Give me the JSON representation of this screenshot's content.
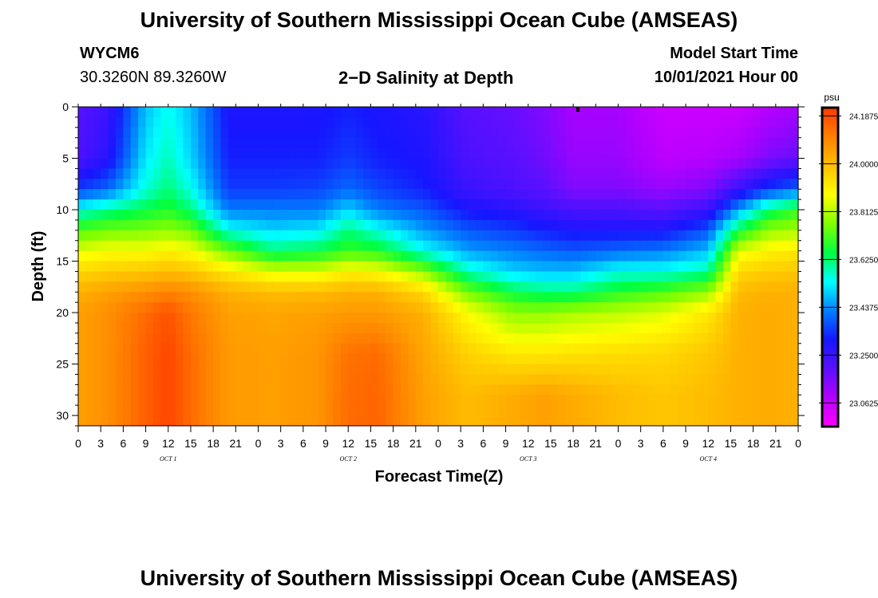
{
  "header": {
    "title_top": "University of Southern Mississippi Ocean Cube (AMSEAS)",
    "title_bottom": "University of Southern Mississippi Ocean Cube (AMSEAS)",
    "station": "WYCM6",
    "coords": "30.3260N  89.3260W",
    "subtitle": "2−D Salinity at Depth",
    "model_start_label": "Model Start Time",
    "model_start_value": "10/01/2021 Hour 00"
  },
  "chart_data": {
    "type": "heatmap",
    "title": "2−D Salinity at Depth",
    "xlabel": "Forecast Time(Z)",
    "ylabel": "Depth (ft)",
    "x_tick_labels": [
      "0",
      "3",
      "6",
      "9",
      "12",
      "15",
      "18",
      "21",
      "0",
      "3",
      "6",
      "9",
      "12",
      "15",
      "18",
      "21",
      "0",
      "3",
      "6",
      "9",
      "12",
      "15",
      "18",
      "21",
      "0",
      "3",
      "6",
      "9",
      "12",
      "15",
      "18",
      "21",
      "0"
    ],
    "day_labels": [
      {
        "label": "OCT 1",
        "hour": 12
      },
      {
        "label": "OCT 2",
        "hour": 36
      },
      {
        "label": "OCT 3",
        "hour": 60
      },
      {
        "label": "OCT 4",
        "hour": 84
      }
    ],
    "xlim": [
      0,
      96
    ],
    "ylim": [
      0,
      31
    ],
    "y_reversed": true,
    "y_ticks": [
      0,
      5,
      10,
      15,
      20,
      25,
      30
    ],
    "colorbar": {
      "unit": "psu",
      "min": 22.97,
      "max": 24.22,
      "tick_values": [
        24.1875,
        24.0,
        23.8125,
        23.625,
        23.4375,
        23.25,
        23.0625
      ],
      "tick_labels": [
        "24.1875",
        "24.0000",
        "23.8125",
        "23.6250",
        "23.4375",
        "23.2500",
        "23.0625"
      ],
      "colors": [
        "#ff00ff",
        "#b400ff",
        "#5a10ff",
        "#1616ff",
        "#0080ff",
        "#00ffff",
        "#00ff40",
        "#80ff00",
        "#ffff00",
        "#ffc000",
        "#ff8000",
        "#ff3a00"
      ]
    },
    "profiles": {
      "hours": [
        0,
        4,
        9,
        12,
        15,
        20,
        26,
        32,
        36,
        40,
        46,
        52,
        58,
        62,
        66,
        72,
        78,
        84,
        88,
        92,
        96
      ],
      "depths_ft": [
        0,
        5,
        8,
        10,
        12,
        14,
        16,
        18,
        20,
        24,
        28,
        31
      ],
      "values_psu": [
        [
          23.2,
          23.22,
          23.35,
          23.55,
          23.72,
          23.85,
          23.95,
          24.02,
          24.05,
          24.05,
          24.05,
          24.05
        ],
        [
          23.25,
          23.28,
          23.4,
          23.6,
          23.75,
          23.88,
          23.97,
          24.05,
          24.08,
          24.08,
          24.08,
          24.08
        ],
        [
          23.48,
          23.52,
          23.56,
          23.65,
          23.76,
          23.88,
          23.98,
          24.08,
          24.14,
          24.16,
          24.16,
          24.16
        ],
        [
          23.55,
          23.58,
          23.62,
          23.68,
          23.78,
          23.9,
          24.0,
          24.1,
          24.18,
          24.2,
          24.2,
          24.2
        ],
        [
          23.48,
          23.5,
          23.55,
          23.62,
          23.75,
          23.88,
          23.98,
          24.08,
          24.12,
          24.14,
          24.14,
          24.14
        ],
        [
          23.3,
          23.32,
          23.35,
          23.42,
          23.55,
          23.75,
          23.92,
          24.02,
          24.05,
          24.06,
          24.06,
          24.06
        ],
        [
          23.3,
          23.32,
          23.35,
          23.42,
          23.5,
          23.62,
          23.85,
          24.0,
          24.04,
          24.05,
          24.05,
          24.05
        ],
        [
          23.3,
          23.32,
          23.36,
          23.42,
          23.52,
          23.65,
          23.85,
          24.0,
          24.05,
          24.07,
          24.07,
          24.07
        ],
        [
          23.32,
          23.35,
          23.4,
          23.5,
          23.62,
          23.7,
          23.9,
          24.02,
          24.06,
          24.13,
          24.14,
          24.14
        ],
        [
          23.3,
          23.32,
          23.36,
          23.42,
          23.55,
          23.68,
          23.88,
          24.02,
          24.06,
          24.14,
          24.15,
          24.15
        ],
        [
          23.28,
          23.3,
          23.32,
          23.38,
          23.45,
          23.55,
          23.78,
          23.95,
          24.02,
          24.04,
          24.05,
          24.05
        ],
        [
          23.2,
          23.22,
          23.25,
          23.3,
          23.38,
          23.45,
          23.58,
          23.75,
          23.88,
          23.96,
          24.0,
          24.0
        ],
        [
          23.18,
          23.2,
          23.22,
          23.28,
          23.35,
          23.42,
          23.5,
          23.65,
          23.78,
          23.92,
          24.03,
          24.03
        ],
        [
          23.15,
          23.17,
          23.2,
          23.25,
          23.32,
          23.4,
          23.48,
          23.62,
          23.78,
          23.92,
          24.05,
          24.05
        ],
        [
          23.1,
          23.12,
          23.15,
          23.22,
          23.3,
          23.38,
          23.48,
          23.62,
          23.8,
          23.93,
          24.03,
          24.03
        ],
        [
          23.1,
          23.12,
          23.15,
          23.22,
          23.3,
          23.4,
          23.55,
          23.68,
          23.82,
          23.94,
          24.0,
          24.0
        ],
        [
          23.05,
          23.07,
          23.12,
          23.2,
          23.3,
          23.42,
          23.55,
          23.72,
          23.85,
          23.95,
          23.98,
          23.98
        ],
        [
          23.05,
          23.08,
          23.15,
          23.25,
          23.38,
          23.48,
          23.6,
          23.78,
          23.92,
          23.98,
          24.0,
          24.0
        ],
        [
          23.05,
          23.1,
          23.25,
          23.45,
          23.65,
          23.85,
          23.95,
          24.0,
          24.02,
          24.02,
          24.02,
          24.02
        ],
        [
          23.08,
          23.15,
          23.35,
          23.62,
          23.78,
          23.9,
          23.97,
          24.02,
          24.03,
          24.03,
          24.03,
          24.03
        ],
        [
          23.1,
          23.18,
          23.4,
          23.7,
          23.8,
          23.92,
          23.98,
          24.02,
          24.02,
          24.02,
          24.02,
          24.02
        ]
      ]
    }
  }
}
